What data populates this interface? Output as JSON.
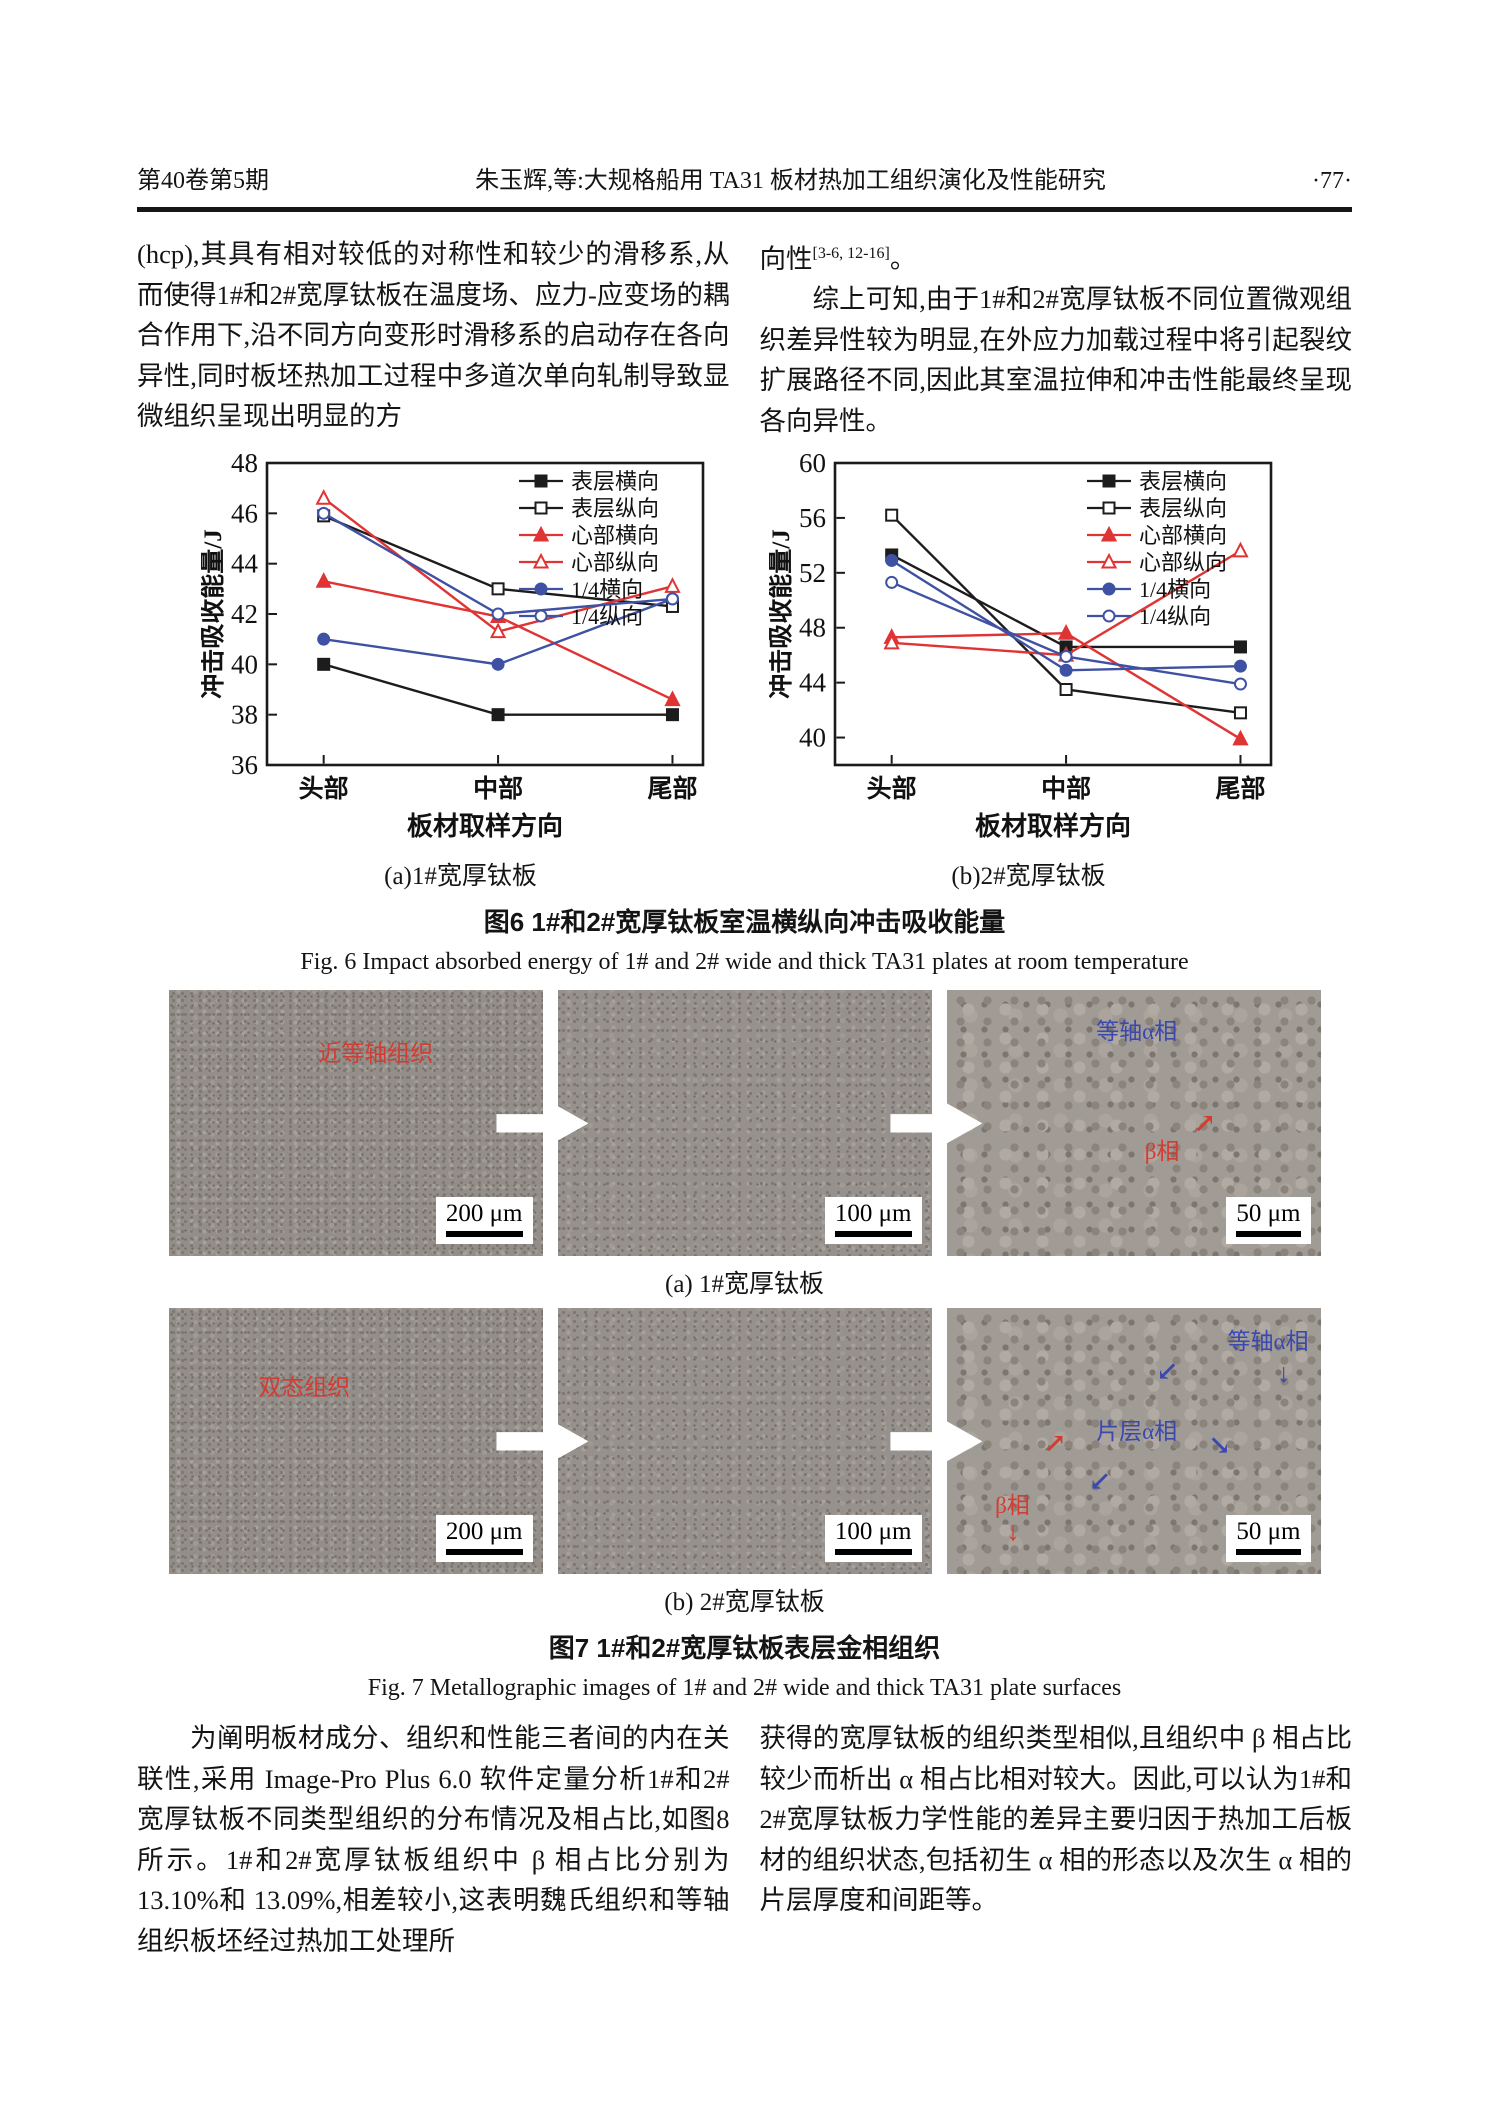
{
  "header": {
    "issue": "第40卷第5期",
    "title": "朱玉辉,等:大规格船用 TA31 板材热加工组织演化及性能研究",
    "page": "·77·"
  },
  "top_left_paragraph": "(hcp),其具有相对较低的对称性和较少的滑移系,从而使得1#和2#宽厚钛板在温度场、应力-应变场的耦合作用下,沿不同方向变形时滑移系的启动存在各向异性,同时板坯热加工过程中多道次单向轧制导致显微组织呈现出明显的方",
  "top_right": {
    "p1_base": "向性",
    "p1_sup": "[3-6, 12-16]",
    "p1_end": "。",
    "p2": "综上可知,由于1#和2#宽厚钛板不同位置微观组织差异性较为明显,在外应力加载过程中将引起裂纹扩展路径不同,因此其室温拉伸和冲击性能最终呈现各向异性。"
  },
  "chart_data": [
    {
      "type": "line",
      "title": "(a)1#宽厚钛板",
      "categories": [
        "头部",
        "中部",
        "尾部"
      ],
      "xlabel": "板材取样方向",
      "ylabel": "冲击吸收能量/J",
      "ylim": [
        36,
        48
      ],
      "yticks": [
        36,
        38,
        40,
        42,
        44,
        46,
        48
      ],
      "grid": false,
      "legend_position": "top-right",
      "series": [
        {
          "name": "表层横向",
          "color": "#1c1c1c",
          "marker": "square-filled",
          "values": [
            40.0,
            38.0,
            38.0
          ]
        },
        {
          "name": "表层纵向",
          "color": "#1c1c1c",
          "marker": "square-open",
          "values": [
            45.9,
            43.0,
            42.3
          ]
        },
        {
          "name": "心部横向",
          "color": "#e03434",
          "marker": "triangle-filled",
          "values": [
            43.3,
            41.9,
            38.6
          ]
        },
        {
          "name": "心部纵向",
          "color": "#e03434",
          "marker": "triangle-open",
          "values": [
            46.6,
            41.3,
            43.1
          ]
        },
        {
          "name": "1/4横向",
          "color": "#3f51a3",
          "marker": "circle-filled",
          "values": [
            41.0,
            40.0,
            42.6
          ]
        },
        {
          "name": "1/4纵向",
          "color": "#3f51a3",
          "marker": "circle-open",
          "values": [
            46.0,
            42.0,
            42.6
          ]
        }
      ]
    },
    {
      "type": "line",
      "title": "(b)2#宽厚钛板",
      "categories": [
        "头部",
        "中部",
        "尾部"
      ],
      "xlabel": "板材取样方向",
      "ylabel": "冲击吸收能量/J",
      "ylim": [
        38,
        60
      ],
      "yticks": [
        40,
        44,
        48,
        52,
        56,
        60
      ],
      "grid": false,
      "legend_position": "top-right",
      "series": [
        {
          "name": "表层横向",
          "color": "#1c1c1c",
          "marker": "square-filled",
          "values": [
            53.3,
            46.6,
            46.6
          ]
        },
        {
          "name": "表层纵向",
          "color": "#1c1c1c",
          "marker": "square-open",
          "values": [
            56.2,
            43.5,
            41.8
          ]
        },
        {
          "name": "心部横向",
          "color": "#e03434",
          "marker": "triangle-filled",
          "values": [
            47.3,
            47.6,
            39.9
          ]
        },
        {
          "name": "心部纵向",
          "color": "#e03434",
          "marker": "triangle-open",
          "values": [
            46.9,
            46.0,
            53.6
          ]
        },
        {
          "name": "1/4横向",
          "color": "#3f51a3",
          "marker": "circle-filled",
          "values": [
            52.9,
            44.9,
            45.2
          ]
        },
        {
          "name": "1/4纵向",
          "color": "#3f51a3",
          "marker": "circle-open",
          "values": [
            51.3,
            45.9,
            43.9
          ]
        }
      ]
    }
  ],
  "fig6": {
    "caption_cn": "图6  1#和2#宽厚钛板室温横纵向冲击吸收能量",
    "caption_en": "Fig. 6   Impact absorbed energy of 1# and 2# wide and thick TA31 plates at room temperature"
  },
  "fig7": {
    "caption_cn": "图7  1#和2#宽厚钛板表层金相组织",
    "caption_en": "Fig. 7   Metallographic images of 1# and 2# wide and thick TA31 plate surfaces",
    "rows": [
      {
        "caption": "(a) 1#宽厚钛板",
        "panels": [
          {
            "scale": "200 μm",
            "label_red": "近等轴组织"
          },
          {
            "scale": "100 μm"
          },
          {
            "scale": "50 μm",
            "label_blue": "等轴α相",
            "label_red": "β相"
          }
        ]
      },
      {
        "caption": "(b) 2#宽厚钛板",
        "panels": [
          {
            "scale": "200 μm",
            "label_red": "双态组织"
          },
          {
            "scale": "100 μm"
          },
          {
            "scale": "50 μm",
            "label_blue1": "等轴α相",
            "label_blue2": "片层α相",
            "label_red": "β相"
          }
        ]
      }
    ]
  },
  "icons": {
    "arrow_ne": "↗",
    "arrow_sw": "↙",
    "arrow_se": "↘",
    "arrow_down": "↓"
  },
  "bottom_left_paragraph": "为阐明板材成分、组织和性能三者间的内在关联性,采用 Image-Pro Plus 6.0 软件定量分析1#和2#宽厚钛板不同类型组织的分布情况及相占比,如图8所示。1#和2#宽厚钛板组织中 β 相占比分别为 13.10%和 13.09%,相差较小,这表明魏氏组织和等轴组织板坯经过热加工处理所",
  "bottom_right_paragraph": "获得的宽厚钛板的组织类型相似,且组织中 β 相占比较少而析出 α 相占比相对较大。因此,可以认为1#和2#宽厚钛板力学性能的差异主要归因于热加工后板材的组织状态,包括初生 α 相的形态以及次生 α 相的片层厚度和间距等。"
}
